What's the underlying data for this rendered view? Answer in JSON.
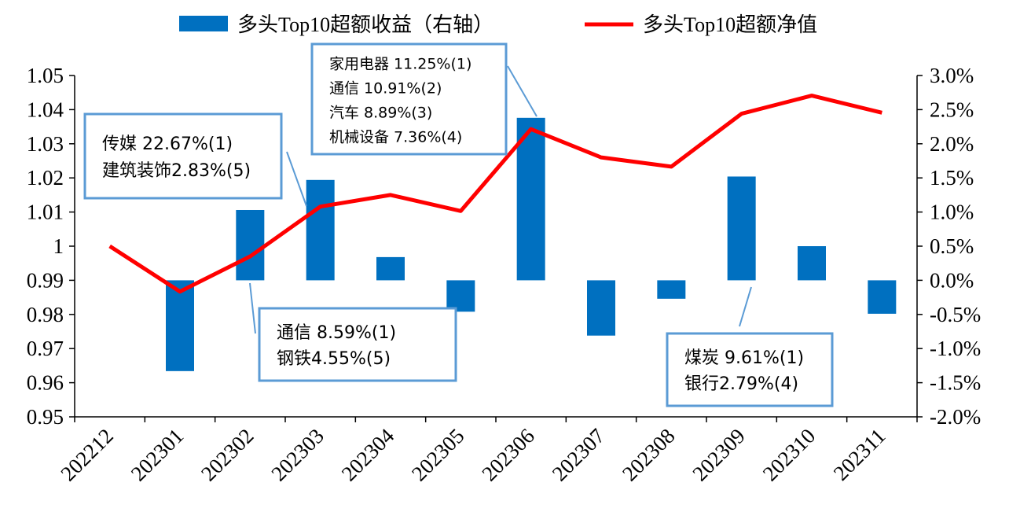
{
  "chart_data": {
    "type": "bar+line",
    "categories": [
      "202212",
      "202301",
      "202302",
      "202303",
      "202304",
      "202305",
      "202306",
      "202307",
      "202308",
      "202309",
      "202310",
      "202311"
    ],
    "series": [
      {
        "name": "多头Top10超额收益（右轴）",
        "chart": "bar",
        "axis": "right",
        "values": [
          null,
          -0.0133,
          0.0103,
          0.0147,
          0.0034,
          -0.0046,
          0.0238,
          -0.0081,
          -0.0027,
          0.0152,
          0.005,
          -0.0049
        ]
      },
      {
        "name": "多头Top10超额净值",
        "chart": "line",
        "axis": "left",
        "values": [
          1.0,
          0.9867,
          0.997,
          1.0116,
          1.015,
          1.0103,
          1.0343,
          1.026,
          1.0233,
          1.0388,
          1.0441,
          1.0391
        ]
      }
    ],
    "left_axis": {
      "ylim": [
        0.95,
        1.05
      ],
      "ticks": [
        "1.05",
        "1.04",
        "1.03",
        "1.02",
        "1.01",
        "1",
        "0.99",
        "0.98",
        "0.97",
        "0.96",
        "0.95"
      ]
    },
    "right_axis": {
      "ylim": [
        -0.02,
        0.03
      ],
      "ticks": [
        "3.0%",
        "2.5%",
        "2.0%",
        "1.5%",
        "1.0%",
        "0.5%",
        "0.0%",
        "-0.5%",
        "-1.0%",
        "-1.5%",
        "-2.0%"
      ]
    },
    "legend": {
      "position": "top",
      "items": [
        "多头Top10超额收益（右轴）",
        "多头Top10超额净值"
      ]
    },
    "colors": {
      "bar": "#0070c0",
      "line": "#ff0000",
      "annotation_border": "#5b9bd5",
      "axis": "#000000"
    },
    "annotations": [
      {
        "category": "202303",
        "lines": [
          "传媒 22.67%(1)",
          "建筑装饰2.83%(5)"
        ]
      },
      {
        "category": "202302",
        "lines": [
          "通信 8.59%(1)",
          "钢铁4.55%(5)"
        ]
      },
      {
        "category": "202306",
        "lines": [
          "家用电器 11.25%(1)",
          "通信 10.91%(2)",
          "汽车 8.89%(3)",
          "机械设备 7.36%(4)"
        ]
      },
      {
        "category": "202309",
        "lines": [
          "煤炭 9.61%(1)",
          "银行2.79%(4)"
        ]
      }
    ]
  }
}
